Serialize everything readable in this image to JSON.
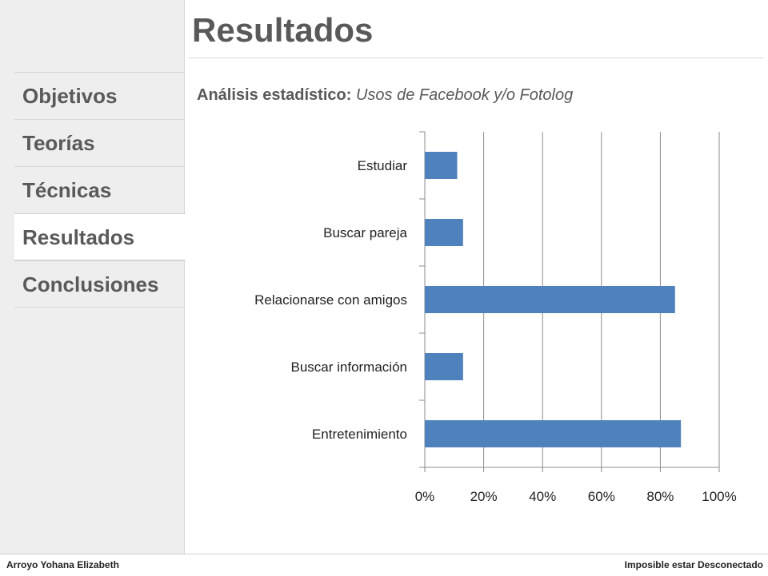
{
  "header": {
    "title": "Resultados"
  },
  "nav": {
    "items": [
      {
        "label": "Objetivos"
      },
      {
        "label": "Teorías"
      },
      {
        "label": "Técnicas"
      },
      {
        "label": "Resultados",
        "active": true
      },
      {
        "label": "Conclusiones"
      }
    ]
  },
  "subtitle": {
    "label": "Análisis estadístico:",
    "topic": "Usos de Facebook y/o Fotolog"
  },
  "chart_data": {
    "type": "bar",
    "orientation": "horizontal",
    "categories": [
      "Estudiar",
      "Buscar pareja",
      "Relacionarse con amigos",
      "Buscar información",
      "Entretenimiento"
    ],
    "values": [
      11,
      13,
      85,
      13,
      87
    ],
    "xlim": [
      0,
      100
    ],
    "ticks": [
      "0%",
      "20%",
      "40%",
      "60%",
      "80%",
      "100%"
    ],
    "grid": true,
    "bar_color": "#4f81bd"
  },
  "footer": {
    "left": "Arroyo Yohana Elizabeth",
    "right": "Imposible estar Desconectado"
  }
}
